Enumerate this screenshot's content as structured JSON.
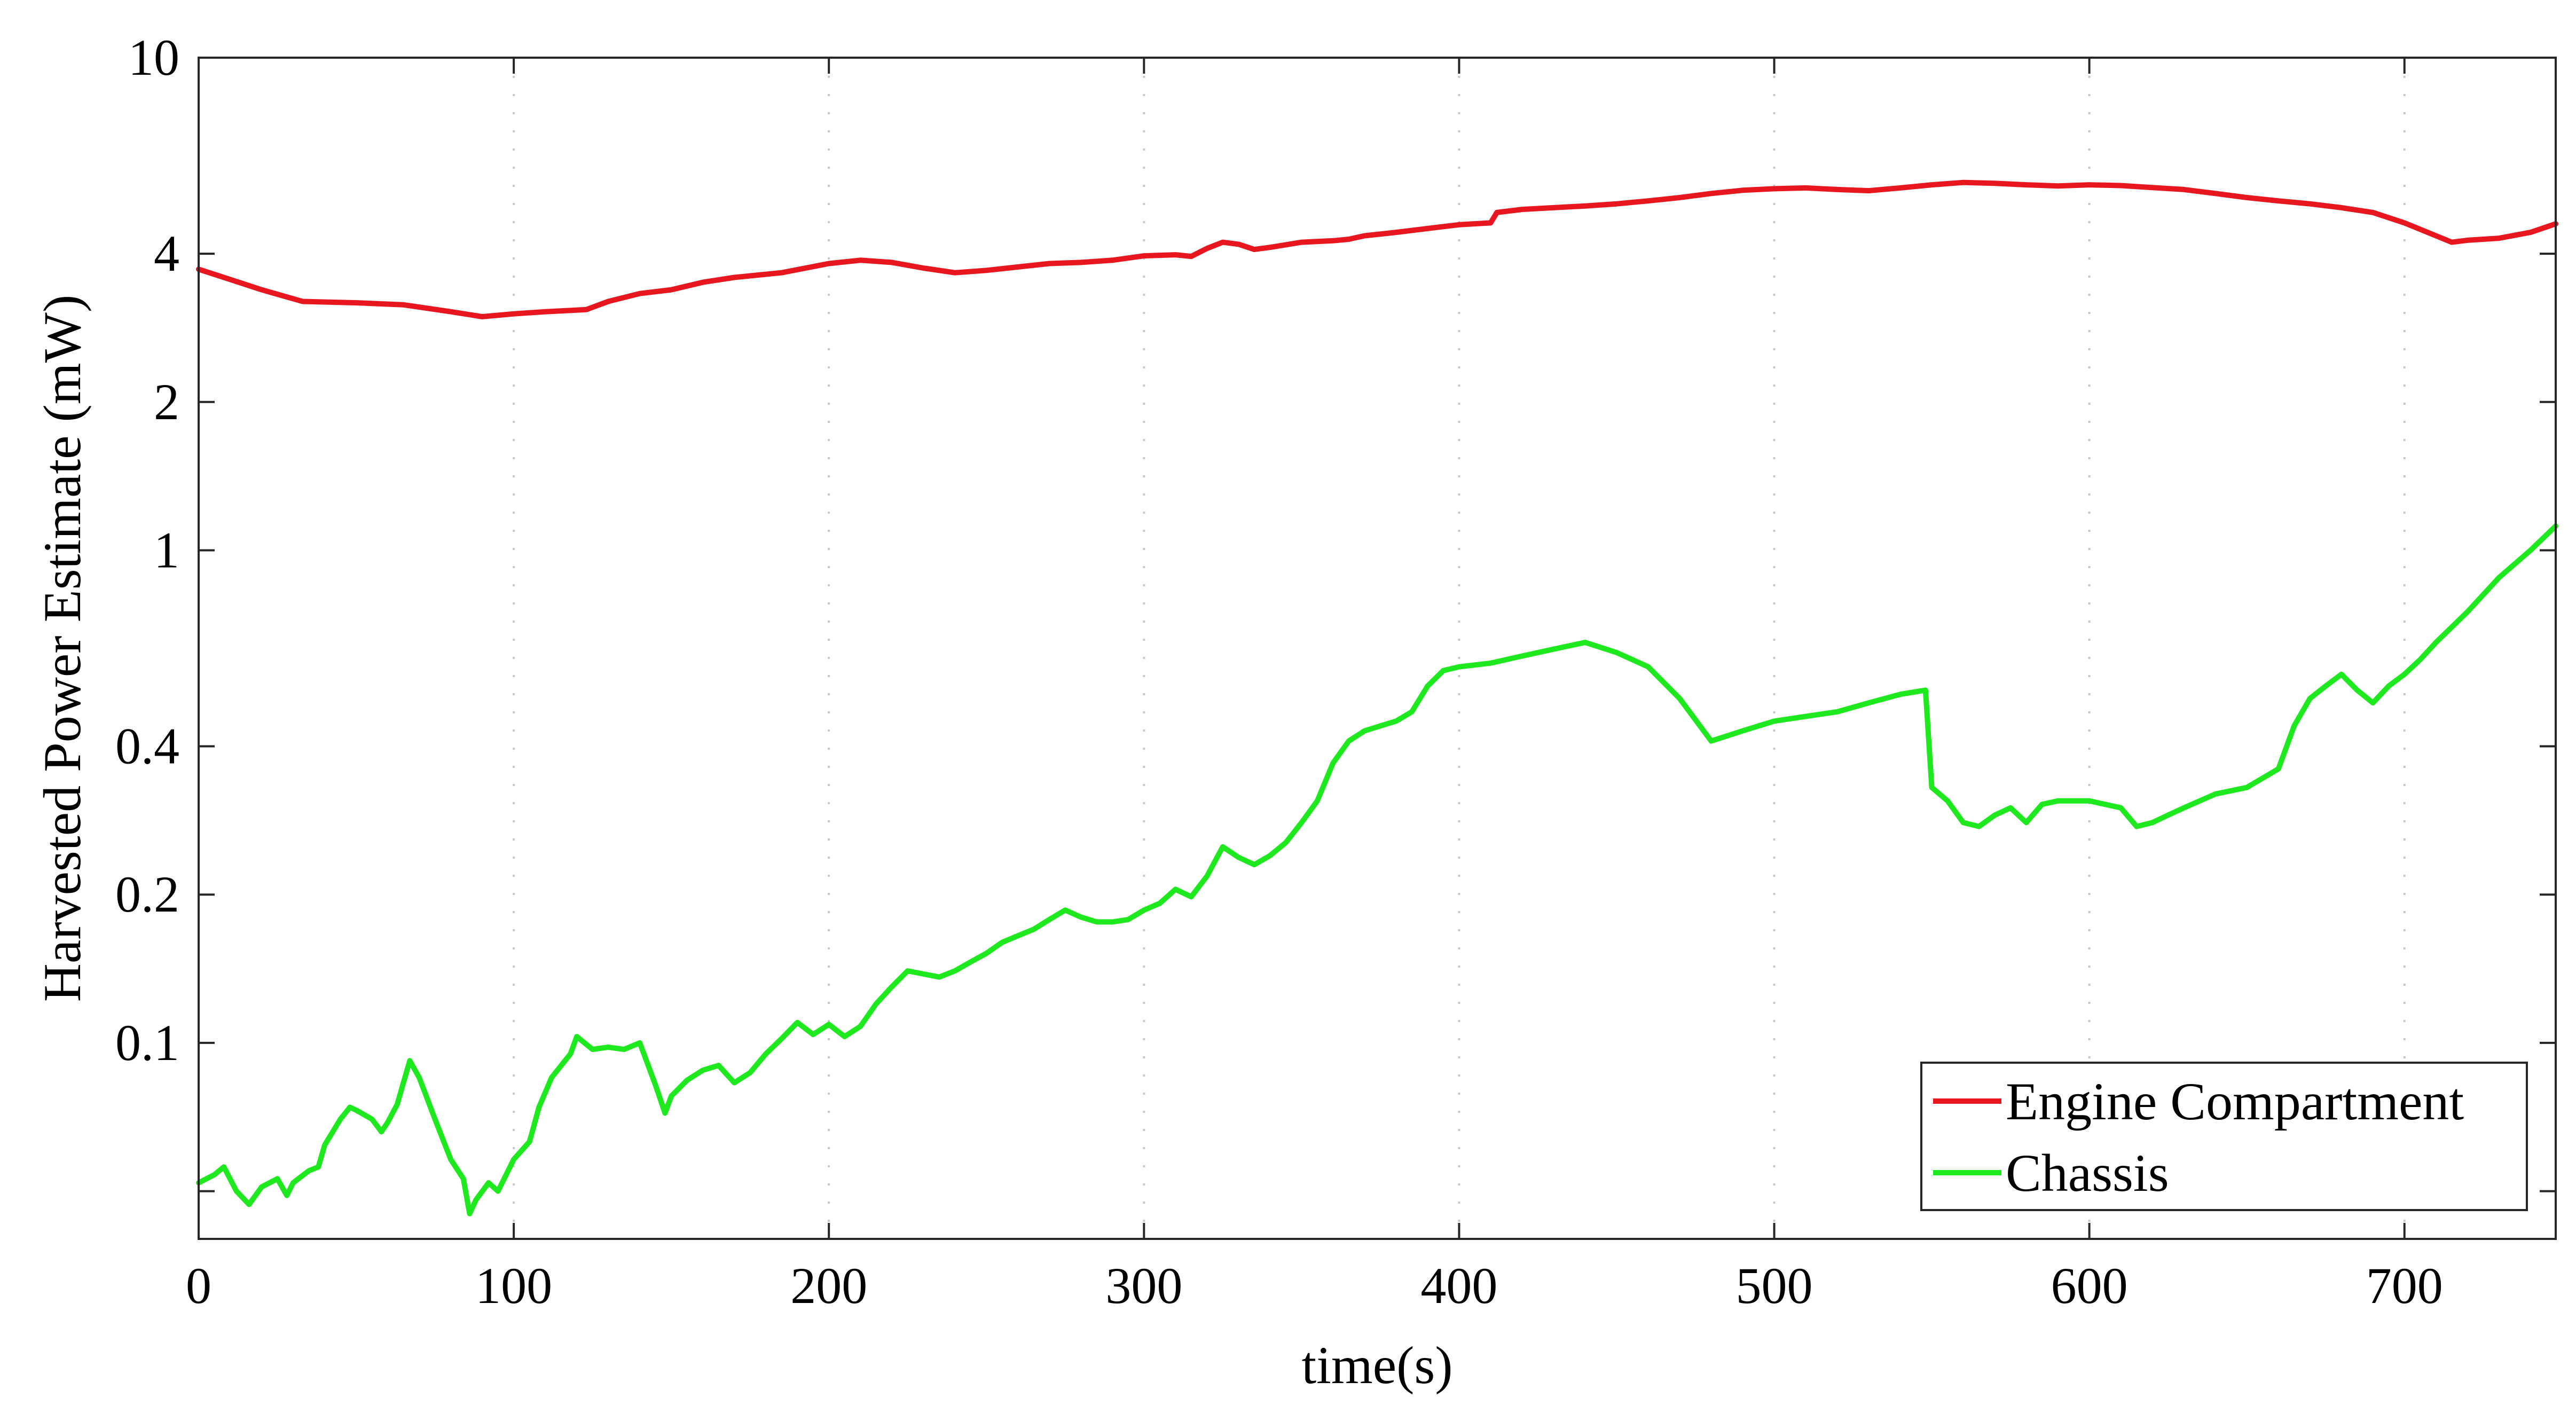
{
  "chart_data": {
    "type": "line",
    "xlabel": "time(s)",
    "ylabel": "Harvested Power Estimate (mW)",
    "xlim": [
      0,
      748
    ],
    "ylim": [
      0.04,
      10
    ],
    "yscale": "log",
    "xticks": [
      0,
      100,
      200,
      300,
      400,
      500,
      600,
      700
    ],
    "xtick_labels": [
      "0",
      "100",
      "200",
      "300",
      "400",
      "500",
      "600",
      "700"
    ],
    "yticks": [
      0.1,
      0.2,
      0.4,
      1,
      2,
      4,
      10
    ],
    "ytick_labels": [
      "0.1",
      "0.2",
      "0.4",
      "1",
      "2",
      "4",
      "10"
    ],
    "yticks_unlabeled": [
      0.05
    ],
    "grid": "dotted vertical at x ticks",
    "legend_position": "bottom-right",
    "series": [
      {
        "name": "Engine Compartment",
        "color": "#e8161e",
        "x": [
          0,
          8,
          20,
          33,
          50,
          65,
          80,
          90,
          100,
          110,
          123,
          130,
          140,
          150,
          160,
          170,
          185,
          200,
          210,
          220,
          230,
          240,
          250,
          260,
          270,
          280,
          290,
          300,
          310,
          315,
          320,
          325,
          330,
          335,
          340,
          350,
          360,
          365,
          370,
          380,
          390,
          400,
          410,
          412,
          420,
          430,
          440,
          450,
          460,
          470,
          480,
          490,
          500,
          510,
          520,
          530,
          540,
          550,
          560,
          570,
          580,
          590,
          600,
          610,
          620,
          630,
          640,
          650,
          660,
          670,
          680,
          690,
          700,
          710,
          715,
          720,
          730,
          740,
          748
        ],
        "values": [
          3.72,
          3.58,
          3.38,
          3.2,
          3.18,
          3.15,
          3.05,
          2.98,
          3.02,
          3.05,
          3.08,
          3.2,
          3.32,
          3.38,
          3.5,
          3.58,
          3.66,
          3.82,
          3.88,
          3.84,
          3.74,
          3.66,
          3.7,
          3.76,
          3.82,
          3.84,
          3.88,
          3.96,
          3.98,
          3.95,
          4.1,
          4.22,
          4.18,
          4.08,
          4.12,
          4.22,
          4.25,
          4.28,
          4.35,
          4.42,
          4.5,
          4.58,
          4.62,
          4.85,
          4.92,
          4.96,
          5.0,
          5.05,
          5.12,
          5.2,
          5.3,
          5.38,
          5.42,
          5.44,
          5.4,
          5.37,
          5.44,
          5.52,
          5.58,
          5.56,
          5.52,
          5.49,
          5.52,
          5.5,
          5.45,
          5.4,
          5.3,
          5.2,
          5.12,
          5.05,
          4.96,
          4.85,
          4.62,
          4.35,
          4.22,
          4.26,
          4.3,
          4.42,
          4.6
        ]
      },
      {
        "name": "Chassis",
        "color": "#1ee81e",
        "x": [
          0,
          5,
          8,
          12,
          16,
          20,
          25,
          28,
          30,
          35,
          38,
          40,
          45,
          48,
          50,
          55,
          58,
          60,
          63,
          67,
          70,
          75,
          80,
          84,
          86,
          88,
          92,
          95,
          100,
          105,
          108,
          112,
          118,
          120,
          125,
          130,
          135,
          140,
          145,
          148,
          150,
          155,
          160,
          165,
          170,
          175,
          180,
          185,
          190,
          195,
          200,
          205,
          210,
          215,
          220,
          225,
          230,
          235,
          240,
          245,
          250,
          255,
          260,
          265,
          270,
          275,
          280,
          285,
          290,
          295,
          300,
          305,
          310,
          315,
          320,
          325,
          330,
          335,
          340,
          345,
          350,
          355,
          360,
          365,
          370,
          375,
          380,
          385,
          390,
          395,
          400,
          410,
          420,
          430,
          440,
          450,
          460,
          470,
          480,
          490,
          500,
          510,
          520,
          530,
          540,
          548,
          550,
          555,
          560,
          565,
          570,
          575,
          580,
          585,
          590,
          600,
          610,
          615,
          620,
          625,
          630,
          640,
          650,
          660,
          665,
          670,
          675,
          680,
          685,
          690,
          695,
          700,
          705,
          710,
          720,
          730,
          740,
          748
        ],
        "values": [
          0.052,
          0.054,
          0.056,
          0.05,
          0.047,
          0.051,
          0.053,
          0.049,
          0.052,
          0.055,
          0.056,
          0.062,
          0.07,
          0.074,
          0.073,
          0.07,
          0.066,
          0.069,
          0.075,
          0.092,
          0.085,
          0.07,
          0.058,
          0.053,
          0.045,
          0.048,
          0.052,
          0.05,
          0.058,
          0.063,
          0.074,
          0.085,
          0.095,
          0.103,
          0.097,
          0.098,
          0.097,
          0.1,
          0.082,
          0.072,
          0.078,
          0.084,
          0.088,
          0.09,
          0.083,
          0.087,
          0.095,
          0.102,
          0.11,
          0.104,
          0.109,
          0.103,
          0.108,
          0.12,
          0.13,
          0.14,
          0.138,
          0.136,
          0.14,
          0.146,
          0.152,
          0.16,
          0.165,
          0.17,
          0.178,
          0.186,
          0.18,
          0.176,
          0.176,
          0.178,
          0.186,
          0.192,
          0.205,
          0.198,
          0.218,
          0.25,
          0.238,
          0.23,
          0.24,
          0.255,
          0.28,
          0.31,
          0.37,
          0.41,
          0.43,
          0.44,
          0.45,
          0.47,
          0.53,
          0.57,
          0.58,
          0.59,
          0.61,
          0.63,
          0.65,
          0.62,
          0.58,
          0.5,
          0.41,
          0.43,
          0.45,
          0.46,
          0.47,
          0.49,
          0.51,
          0.52,
          0.33,
          0.31,
          0.28,
          0.275,
          0.29,
          0.3,
          0.28,
          0.305,
          0.31,
          0.31,
          0.3,
          0.275,
          0.28,
          0.29,
          0.3,
          0.32,
          0.33,
          0.36,
          0.44,
          0.5,
          0.53,
          0.56,
          0.52,
          0.49,
          0.53,
          0.56,
          0.6,
          0.65,
          0.75,
          0.88,
          1.0,
          1.12
        ]
      }
    ]
  }
}
